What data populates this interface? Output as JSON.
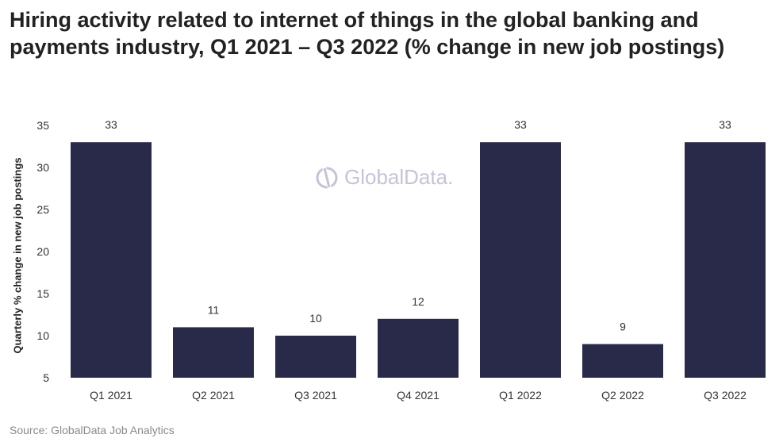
{
  "title": "Hiring activity related to internet of things in the global banking and payments industry, Q1 2021 – Q3 2022 (% change in new job postings)",
  "source": "Source: GlobalData Job Analytics",
  "watermark": "GlobalData.",
  "colors": {
    "bar": "#29294a",
    "text": "#222222",
    "watermark": "#c5c3d8"
  },
  "chart_data": {
    "type": "bar",
    "title": "Hiring activity related to internet of things in the global banking and payments industry, Q1 2021 – Q3 2022 (% change in new job postings)",
    "xlabel": "",
    "ylabel": "Quarterly % change in new job postings",
    "categories": [
      "Q1 2021",
      "Q2 2021",
      "Q3 2021",
      "Q4 2021",
      "Q1 2022",
      "Q2 2022",
      "Q3 2022"
    ],
    "values": [
      33,
      11,
      10,
      12,
      33,
      9,
      33
    ],
    "data_labels": [
      "33",
      "11",
      "10",
      "12",
      "33",
      "9",
      "33"
    ],
    "ylim": [
      5,
      35
    ],
    "yticks": [
      5,
      10,
      15,
      20,
      25,
      30,
      35
    ],
    "grid": false,
    "legend": "none"
  }
}
